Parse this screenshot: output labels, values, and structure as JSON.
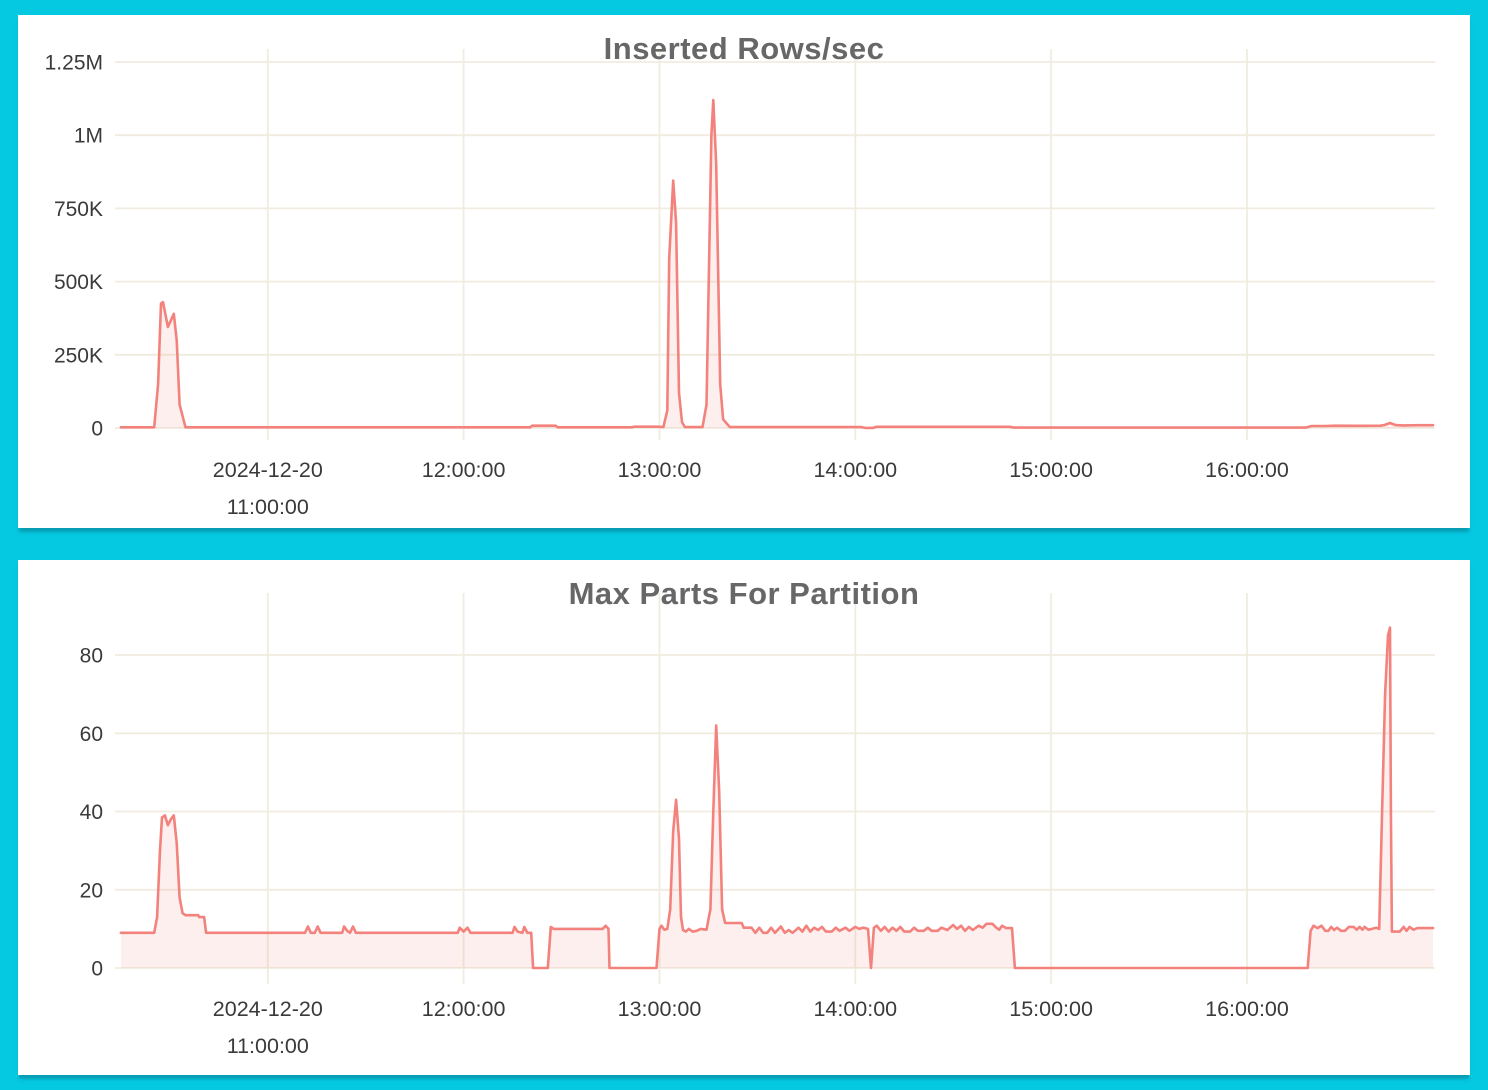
{
  "colors": {
    "background": "#05c9e0",
    "panel": "#ffffff",
    "title_text": "#676767",
    "axis_label": "#3a3a3a",
    "grid": "#f0ecdf",
    "line": "#f3827d",
    "area_fill": "rgba(243,130,125,0.13)"
  },
  "chart_data": [
    {
      "type": "area",
      "title": "Inserted Rows/sec",
      "xlabel": "",
      "ylabel": "",
      "legend": "none",
      "grid": "on",
      "x_unit": "time (decimal hours, 2024-12-20)",
      "xlim": [
        10.22,
        16.96
      ],
      "ylim": [
        0,
        1250000
      ],
      "x_ticks": [
        {
          "t": 11,
          "lines": [
            "2024-12-20",
            "11:00:00"
          ]
        },
        {
          "t": 12,
          "lines": [
            "12:00:00"
          ]
        },
        {
          "t": 13,
          "lines": [
            "13:00:00"
          ]
        },
        {
          "t": 14,
          "lines": [
            "14:00:00"
          ]
        },
        {
          "t": 15,
          "lines": [
            "15:00:00"
          ]
        },
        {
          "t": 16,
          "lines": [
            "16:00:00"
          ]
        }
      ],
      "y_ticks": [
        {
          "v": 1250000,
          "label": "1.25M"
        },
        {
          "v": 1000000,
          "label": "1M"
        },
        {
          "v": 750000,
          "label": "750K"
        },
        {
          "v": 500000,
          "label": "500K"
        },
        {
          "v": 250000,
          "label": "250K"
        },
        {
          "v": 0,
          "label": "0"
        }
      ],
      "points": [
        [
          10.25,
          2500
        ],
        [
          10.42,
          2500
        ],
        [
          10.44,
          150000
        ],
        [
          10.455,
          425000
        ],
        [
          10.465,
          430000
        ],
        [
          10.49,
          345000
        ],
        [
          10.52,
          390000
        ],
        [
          10.535,
          300000
        ],
        [
          10.55,
          80000
        ],
        [
          10.58,
          2500
        ],
        [
          11.0,
          2500
        ],
        [
          11.6,
          2500
        ],
        [
          12.0,
          2500
        ],
        [
          12.34,
          2500
        ],
        [
          12.35,
          8000
        ],
        [
          12.47,
          8000
        ],
        [
          12.48,
          2500
        ],
        [
          12.86,
          2500
        ],
        [
          12.87,
          4500
        ],
        [
          12.99,
          4500
        ],
        [
          13.02,
          3000
        ],
        [
          13.04,
          60000
        ],
        [
          13.05,
          580000
        ],
        [
          13.07,
          845000
        ],
        [
          13.085,
          700000
        ],
        [
          13.1,
          120000
        ],
        [
          13.115,
          20000
        ],
        [
          13.13,
          3000
        ],
        [
          13.22,
          3000
        ],
        [
          13.24,
          80000
        ],
        [
          13.265,
          1000000
        ],
        [
          13.275,
          1120000
        ],
        [
          13.29,
          900000
        ],
        [
          13.31,
          150000
        ],
        [
          13.325,
          30000
        ],
        [
          13.34,
          18000
        ],
        [
          13.36,
          3000
        ],
        [
          13.7,
          3000
        ],
        [
          14.03,
          3000
        ],
        [
          14.05,
          500
        ],
        [
          14.09,
          500
        ],
        [
          14.11,
          4000
        ],
        [
          14.79,
          4000
        ],
        [
          14.81,
          1500
        ],
        [
          15.5,
          1500
        ],
        [
          16.3,
          1500
        ],
        [
          16.33,
          7000
        ],
        [
          16.4,
          7000
        ],
        [
          16.45,
          8000
        ],
        [
          16.55,
          7500
        ],
        [
          16.68,
          8000
        ],
        [
          16.7,
          10000
        ],
        [
          16.73,
          17000
        ],
        [
          16.76,
          10000
        ],
        [
          16.8,
          9000
        ],
        [
          16.88,
          9500
        ],
        [
          16.95,
          9500
        ]
      ]
    },
    {
      "type": "area",
      "title": "Max Parts For Partition",
      "xlabel": "",
      "ylabel": "",
      "legend": "none",
      "grid": "on",
      "x_unit": "time (decimal hours, 2024-12-20)",
      "xlim": [
        10.22,
        16.96
      ],
      "ylim": [
        0,
        80
      ],
      "x_ticks": [
        {
          "t": 11,
          "lines": [
            "2024-12-20",
            "11:00:00"
          ]
        },
        {
          "t": 12,
          "lines": [
            "12:00:00"
          ]
        },
        {
          "t": 13,
          "lines": [
            "13:00:00"
          ]
        },
        {
          "t": 14,
          "lines": [
            "14:00:00"
          ]
        },
        {
          "t": 15,
          "lines": [
            "15:00:00"
          ]
        },
        {
          "t": 16,
          "lines": [
            "16:00:00"
          ]
        }
      ],
      "y_ticks": [
        {
          "v": 80,
          "label": "80"
        },
        {
          "v": 60,
          "label": "60"
        },
        {
          "v": 40,
          "label": "40"
        },
        {
          "v": 20,
          "label": "20"
        },
        {
          "v": 0,
          "label": "0"
        }
      ],
      "points": [
        [
          10.25,
          9
        ],
        [
          10.42,
          9
        ],
        [
          10.435,
          13
        ],
        [
          10.45,
          30
        ],
        [
          10.46,
          38.5
        ],
        [
          10.475,
          39
        ],
        [
          10.49,
          36.5
        ],
        [
          10.505,
          38
        ],
        [
          10.52,
          39
        ],
        [
          10.535,
          32
        ],
        [
          10.55,
          18
        ],
        [
          10.565,
          14
        ],
        [
          10.58,
          13.5
        ],
        [
          10.645,
          13.5
        ],
        [
          10.65,
          13
        ],
        [
          10.675,
          13
        ],
        [
          10.685,
          9
        ],
        [
          10.8,
          9
        ],
        [
          11.19,
          9
        ],
        [
          11.205,
          10.6
        ],
        [
          11.22,
          9
        ],
        [
          11.24,
          9
        ],
        [
          11.255,
          10.6
        ],
        [
          11.27,
          9
        ],
        [
          11.38,
          9
        ],
        [
          11.39,
          10.6
        ],
        [
          11.405,
          9.5
        ],
        [
          11.42,
          9
        ],
        [
          11.435,
          10.6
        ],
        [
          11.45,
          9
        ],
        [
          11.6,
          9
        ],
        [
          11.97,
          9
        ],
        [
          11.98,
          10.3
        ],
        [
          12.0,
          9.3
        ],
        [
          12.02,
          10.3
        ],
        [
          12.035,
          9
        ],
        [
          12.25,
          9
        ],
        [
          12.26,
          10.5
        ],
        [
          12.275,
          9.3
        ],
        [
          12.3,
          9
        ],
        [
          12.31,
          10.5
        ],
        [
          12.325,
          9
        ],
        [
          12.345,
          9
        ],
        [
          12.355,
          0
        ],
        [
          12.43,
          0
        ],
        [
          12.445,
          10.5
        ],
        [
          12.46,
          10
        ],
        [
          12.6,
          10
        ],
        [
          12.71,
          10
        ],
        [
          12.725,
          10.8
        ],
        [
          12.74,
          10
        ],
        [
          12.745,
          0
        ],
        [
          12.985,
          0
        ],
        [
          13.0,
          10
        ],
        [
          13.01,
          10.8
        ],
        [
          13.025,
          9.8
        ],
        [
          13.04,
          10
        ],
        [
          13.055,
          15
        ],
        [
          13.07,
          35
        ],
        [
          13.085,
          43
        ],
        [
          13.1,
          33
        ],
        [
          13.11,
          13
        ],
        [
          13.12,
          9.7
        ],
        [
          13.135,
          9.3
        ],
        [
          13.15,
          10
        ],
        [
          13.17,
          9.3
        ],
        [
          13.19,
          9.5
        ],
        [
          13.21,
          10
        ],
        [
          13.24,
          9.8
        ],
        [
          13.26,
          15
        ],
        [
          13.275,
          40
        ],
        [
          13.29,
          62
        ],
        [
          13.305,
          45
        ],
        [
          13.32,
          15
        ],
        [
          13.335,
          11.5
        ],
        [
          13.42,
          11.5
        ],
        [
          13.43,
          10.3
        ],
        [
          13.47,
          10.3
        ],
        [
          13.49,
          9
        ],
        [
          13.51,
          10.3
        ],
        [
          13.53,
          9
        ],
        [
          13.55,
          9
        ],
        [
          13.57,
          10.3
        ],
        [
          13.59,
          9
        ],
        [
          13.62,
          10.6
        ],
        [
          13.64,
          9
        ],
        [
          13.66,
          9.7
        ],
        [
          13.68,
          9
        ],
        [
          13.71,
          10.3
        ],
        [
          13.73,
          9.3
        ],
        [
          13.75,
          10.8
        ],
        [
          13.77,
          9.3
        ],
        [
          13.79,
          10.3
        ],
        [
          13.81,
          9.7
        ],
        [
          13.83,
          10.5
        ],
        [
          13.85,
          9.3
        ],
        [
          13.88,
          9.3
        ],
        [
          13.9,
          10.3
        ],
        [
          13.92,
          9.5
        ],
        [
          13.95,
          10.3
        ],
        [
          13.97,
          9.5
        ],
        [
          14.0,
          10.5
        ],
        [
          14.02,
          10
        ],
        [
          14.04,
          10.3
        ],
        [
          14.065,
          10
        ],
        [
          14.08,
          0
        ],
        [
          14.095,
          10.3
        ],
        [
          14.11,
          10.8
        ],
        [
          14.13,
          9.5
        ],
        [
          14.15,
          10.5
        ],
        [
          14.17,
          9.3
        ],
        [
          14.19,
          10.3
        ],
        [
          14.21,
          9.5
        ],
        [
          14.23,
          10.5
        ],
        [
          14.25,
          9.3
        ],
        [
          14.28,
          9.3
        ],
        [
          14.3,
          10.3
        ],
        [
          14.32,
          9.5
        ],
        [
          14.35,
          9.5
        ],
        [
          14.37,
          10.3
        ],
        [
          14.39,
          9.5
        ],
        [
          14.42,
          9.5
        ],
        [
          14.44,
          10.3
        ],
        [
          14.47,
          9.7
        ],
        [
          14.5,
          11
        ],
        [
          14.52,
          10
        ],
        [
          14.54,
          10.8
        ],
        [
          14.56,
          9.5
        ],
        [
          14.58,
          10.5
        ],
        [
          14.6,
          9.7
        ],
        [
          14.63,
          10.8
        ],
        [
          14.65,
          10.3
        ],
        [
          14.67,
          11.3
        ],
        [
          14.7,
          11.3
        ],
        [
          14.72,
          10.3
        ],
        [
          14.735,
          9.8
        ],
        [
          14.75,
          10.8
        ],
        [
          14.77,
          10.2
        ],
        [
          14.8,
          10.2
        ],
        [
          14.815,
          0
        ],
        [
          15.2,
          0
        ],
        [
          15.8,
          0
        ],
        [
          16.31,
          0
        ],
        [
          16.325,
          9.5
        ],
        [
          16.34,
          10.8
        ],
        [
          16.36,
          10.2
        ],
        [
          16.38,
          10.8
        ],
        [
          16.4,
          9.5
        ],
        [
          16.415,
          9.5
        ],
        [
          16.43,
          10.5
        ],
        [
          16.445,
          9.7
        ],
        [
          16.46,
          10.3
        ],
        [
          16.48,
          9.5
        ],
        [
          16.5,
          9.5
        ],
        [
          16.52,
          10.5
        ],
        [
          16.545,
          10.5
        ],
        [
          16.56,
          9.8
        ],
        [
          16.575,
          10.5
        ],
        [
          16.59,
          9.8
        ],
        [
          16.6,
          10.5
        ],
        [
          16.62,
          9.8
        ],
        [
          16.66,
          10.3
        ],
        [
          16.675,
          10
        ],
        [
          16.69,
          40
        ],
        [
          16.705,
          70
        ],
        [
          16.72,
          85
        ],
        [
          16.73,
          87
        ],
        [
          16.735,
          40
        ],
        [
          16.74,
          9.3
        ],
        [
          16.76,
          9.3
        ],
        [
          16.78,
          9.3
        ],
        [
          16.8,
          10.5
        ],
        [
          16.815,
          9.5
        ],
        [
          16.83,
          10.5
        ],
        [
          16.85,
          9.8
        ],
        [
          16.87,
          10.2
        ],
        [
          16.93,
          10.2
        ],
        [
          16.95,
          10.2
        ]
      ]
    }
  ]
}
